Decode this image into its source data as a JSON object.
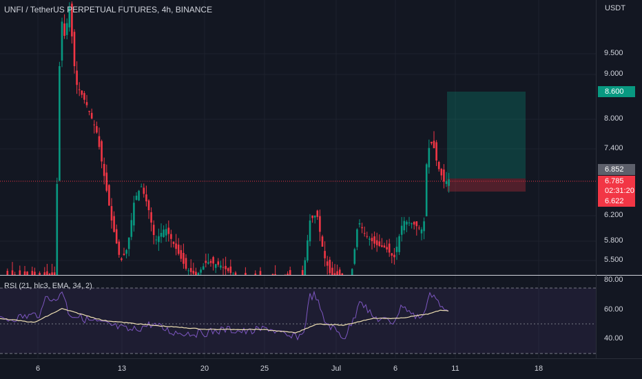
{
  "header": {
    "title": "UNFI / TetherUS PERPETUAL FUTURES, 4h, BINANCE"
  },
  "price_axis": {
    "unit": "USDT",
    "ticks": [
      "9.500",
      "9.000",
      "8.000",
      "7.400",
      "6.200",
      "5.800",
      "5.500"
    ]
  },
  "price_tags": {
    "take_profit": "8.600",
    "previous_close": "6.852",
    "current_price": "6.785",
    "countdown": "02:31:20",
    "stop_loss": "6.622"
  },
  "rsi": {
    "label": "RSI (21, hlc3, EMA, 34, 2)",
    "ticks": [
      "80.00",
      "60.00",
      "40.00"
    ]
  },
  "time_axis": {
    "ticks": [
      "6",
      "13",
      "20",
      "25",
      "Jul",
      "6",
      "11",
      "18"
    ]
  },
  "colors": {
    "background": "#131722",
    "up": "#089981",
    "down": "#f23645",
    "rsi_line": "#7e57c2",
    "rsi_ma": "#f0e1b4",
    "rsi_band": "#2a2540"
  }
}
